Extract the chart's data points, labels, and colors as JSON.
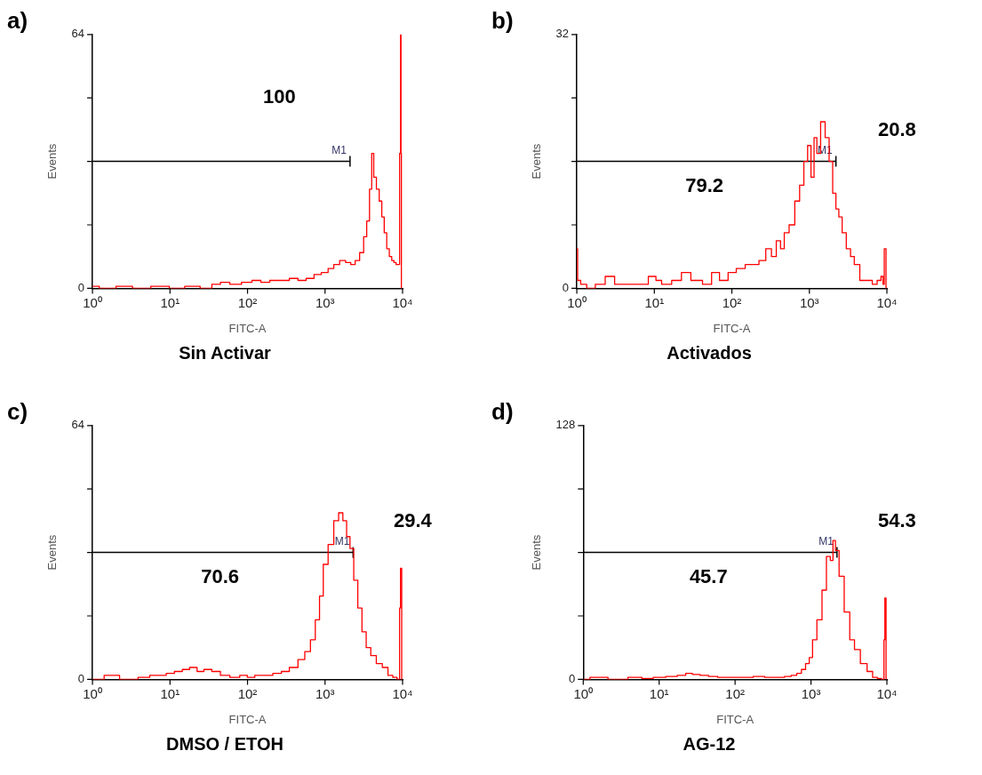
{
  "chart_data": [
    {
      "type": "step",
      "title": "a)",
      "subtitle": "Sin Activar",
      "xlabel": "FITC-A",
      "ylabel": "Events",
      "log": "x",
      "grid": false,
      "legend": false,
      "marker": "none",
      "xlim": [
        1,
        10000
      ],
      "xticks": [
        {
          "value": 1,
          "label": "10⁰"
        },
        {
          "value": 10,
          "label": "10¹"
        },
        {
          "value": 100,
          "label": "10²"
        },
        {
          "value": 1000,
          "label": "10³"
        },
        {
          "value": 10000,
          "label": "10⁴"
        }
      ],
      "ylim": [
        0,
        64
      ],
      "yticks": [
        0,
        {
          "value": 16,
          "label": null
        },
        {
          "value": 32,
          "label": null
        },
        {
          "value": 48,
          "label": null
        },
        64
      ],
      "series": [
        {
          "color": "#ff0000",
          "x": [
            1,
            1.5,
            2.7,
            4,
            8,
            12,
            20,
            30,
            40,
            50,
            70,
            100,
            130,
            170,
            220,
            300,
            400,
            500,
            650,
            800,
            1000,
            1200,
            1400,
            1700,
            2000,
            2300,
            2600,
            3000,
            3300,
            3600,
            3900,
            4100,
            4400,
            4800,
            5200,
            5600,
            6000,
            6500,
            7000,
            7500,
            8000,
            8500,
            9000,
            9300,
            9500,
            9600,
            9700
          ],
          "values": [
            0.5,
            0,
            0.5,
            0,
            0.5,
            0,
            0.5,
            0,
            1,
            1.5,
            1,
            1.5,
            2,
            1.5,
            2,
            2,
            2.5,
            2,
            2.5,
            3.5,
            4,
            5,
            6,
            7,
            6.5,
            6,
            7,
            9,
            13,
            17,
            25,
            34,
            28,
            25,
            22,
            18,
            14,
            10,
            8,
            7,
            6.5,
            6,
            6,
            34,
            64,
            34,
            0
          ]
        },
        {
          "type": "line",
          "name": "M1",
          "color": "#000000",
          "x": [
            1,
            2100
          ],
          "values": [
            32,
            32
          ]
        }
      ],
      "annotations": [
        "100"
      ]
    },
    {
      "type": "step",
      "title": "b)",
      "subtitle": "Activados",
      "xlabel": "FITC-A",
      "ylabel": "Events",
      "log": "x",
      "grid": false,
      "legend": false,
      "marker": "none",
      "xlim": [
        1,
        10000
      ],
      "xticks": [
        {
          "value": 1,
          "label": "10⁰"
        },
        {
          "value": 10,
          "label": "10¹"
        },
        {
          "value": 100,
          "label": "10²"
        },
        {
          "value": 1000,
          "label": "10³"
        },
        {
          "value": 10000,
          "label": "10⁴"
        }
      ],
      "ylim": [
        0,
        32
      ],
      "yticks": [
        0,
        {
          "value": 8,
          "label": null
        },
        {
          "value": 16,
          "label": null
        },
        {
          "value": 24,
          "label": null
        },
        32
      ],
      "series": [
        {
          "color": "#ff0000",
          "x": [
            1,
            1.05,
            1.2,
            1.5,
            2,
            2.7,
            3.5,
            5,
            7,
            10,
            11,
            14,
            20,
            25,
            35,
            50,
            60,
            80,
            100,
            130,
            170,
            200,
            250,
            300,
            350,
            400,
            450,
            500,
            600,
            700,
            800,
            900,
            1000,
            1100,
            1200,
            1300,
            1500,
            1700,
            1900,
            2100,
            2300,
            2500,
            2800,
            3200,
            3600,
            4000,
            5000,
            6000,
            7000,
            8000,
            8800,
            9000,
            9500,
            10000
          ],
          "values": [
            5,
            1,
            0.5,
            0,
            0.5,
            1.5,
            0.5,
            0.5,
            0.5,
            1.5,
            1,
            0.5,
            1,
            2,
            1,
            0.5,
            2,
            1,
            2,
            2.5,
            3,
            3,
            3.5,
            5,
            4,
            6,
            5,
            7,
            8,
            11,
            13,
            16,
            18,
            14,
            19,
            17,
            21,
            19,
            16,
            12,
            10,
            9,
            7,
            5,
            4,
            3,
            1,
            1,
            0.5,
            1,
            1.5,
            0.5,
            5,
            0
          ]
        },
        {
          "type": "line",
          "name": "M1",
          "color": "#000000",
          "x": [
            1,
            2200
          ],
          "values": [
            16,
            16
          ]
        }
      ],
      "annotations": [
        "79.2",
        "20.8"
      ]
    },
    {
      "type": "step",
      "title": "c)",
      "subtitle": "DMSO / ETOH",
      "xlabel": "FITC-A",
      "ylabel": "Events",
      "log": "x",
      "grid": false,
      "legend": false,
      "marker": "none",
      "xlim": [
        1,
        10000
      ],
      "xticks": [
        {
          "value": 1,
          "label": "10⁰"
        },
        {
          "value": 10,
          "label": "10¹"
        },
        {
          "value": 100,
          "label": "10²"
        },
        {
          "value": 1000,
          "label": "10³"
        },
        {
          "value": 10000,
          "label": "10⁴"
        }
      ],
      "ylim": [
        0,
        64
      ],
      "yticks": [
        0,
        {
          "value": 16,
          "label": null
        },
        {
          "value": 32,
          "label": null
        },
        {
          "value": 48,
          "label": null
        },
        64
      ],
      "series": [
        {
          "color": "#ff0000",
          "x": [
            1,
            2,
            2.5,
            3,
            5,
            6,
            8,
            10,
            13,
            16,
            20,
            25,
            30,
            40,
            50,
            70,
            90,
            110,
            140,
            180,
            250,
            300,
            400,
            500,
            600,
            700,
            800,
            900,
            1000,
            1200,
            1400,
            1600,
            1800,
            2000,
            2200,
            2500,
            2800,
            3200,
            3600,
            4200,
            5000,
            6000,
            7000,
            8000,
            9000,
            9300,
            9500,
            10000
          ],
          "values": [
            0,
            1,
            0,
            0,
            0.5,
            1,
            1,
            1.5,
            2,
            2.5,
            3,
            2,
            2.5,
            2,
            1,
            0.5,
            1,
            0.5,
            1,
            1,
            1.5,
            2,
            3,
            5,
            7,
            10,
            15,
            21,
            29,
            34,
            40,
            42,
            40,
            36,
            33,
            25,
            18,
            12,
            8,
            6,
            4,
            3,
            1,
            0.5,
            0,
            18,
            28,
            0
          ]
        },
        {
          "type": "line",
          "name": "M1",
          "color": "#000000",
          "x": [
            1,
            2300
          ],
          "values": [
            32,
            32
          ]
        }
      ],
      "annotations": [
        "70.6",
        "29.4"
      ]
    },
    {
      "type": "step",
      "title": "d)",
      "subtitle": "AG-12",
      "xlabel": "FITC-A",
      "ylabel": "Events",
      "log": "x",
      "grid": false,
      "legend": false,
      "marker": "none",
      "xlim": [
        1,
        10000
      ],
      "xticks": [
        {
          "value": 1,
          "label": "10⁰"
        },
        {
          "value": 10,
          "label": "10¹"
        },
        {
          "value": 100,
          "label": "10²"
        },
        {
          "value": 1000,
          "label": "10³"
        },
        {
          "value": 10000,
          "label": "10⁴"
        }
      ],
      "ylim": [
        0,
        128
      ],
      "yticks": [
        0,
        {
          "value": 32,
          "label": null
        },
        {
          "value": 64,
          "label": null
        },
        {
          "value": 96,
          "label": null
        },
        128
      ],
      "series": [
        {
          "color": "#ff0000",
          "x": [
            1,
            1.5,
            3,
            5,
            7,
            10,
            15,
            20,
            25,
            30,
            40,
            50,
            70,
            100,
            150,
            200,
            300,
            400,
            500,
            600,
            700,
            800,
            900,
            1000,
            1100,
            1300,
            1500,
            1700,
            1900,
            2000,
            2200,
            2500,
            3000,
            3500,
            4000,
            5000,
            6000,
            7000,
            8000,
            9000,
            9300,
            9500,
            10000
          ],
          "values": [
            0,
            1,
            0,
            1,
            0.5,
            1,
            1.5,
            2,
            3,
            2.5,
            2,
            1.5,
            1,
            1,
            1,
            1.5,
            1,
            1,
            1.5,
            2,
            3,
            5,
            8,
            11,
            20,
            30,
            45,
            62,
            60,
            70,
            65,
            52,
            34,
            20,
            15,
            8,
            4,
            1,
            0.5,
            0,
            20,
            41,
            0
          ]
        },
        {
          "type": "line",
          "name": "M1",
          "color": "#000000",
          "x": [
            1,
            2200
          ],
          "values": [
            64,
            64
          ]
        }
      ],
      "annotations": [
        "45.7",
        "54.3"
      ]
    }
  ]
}
